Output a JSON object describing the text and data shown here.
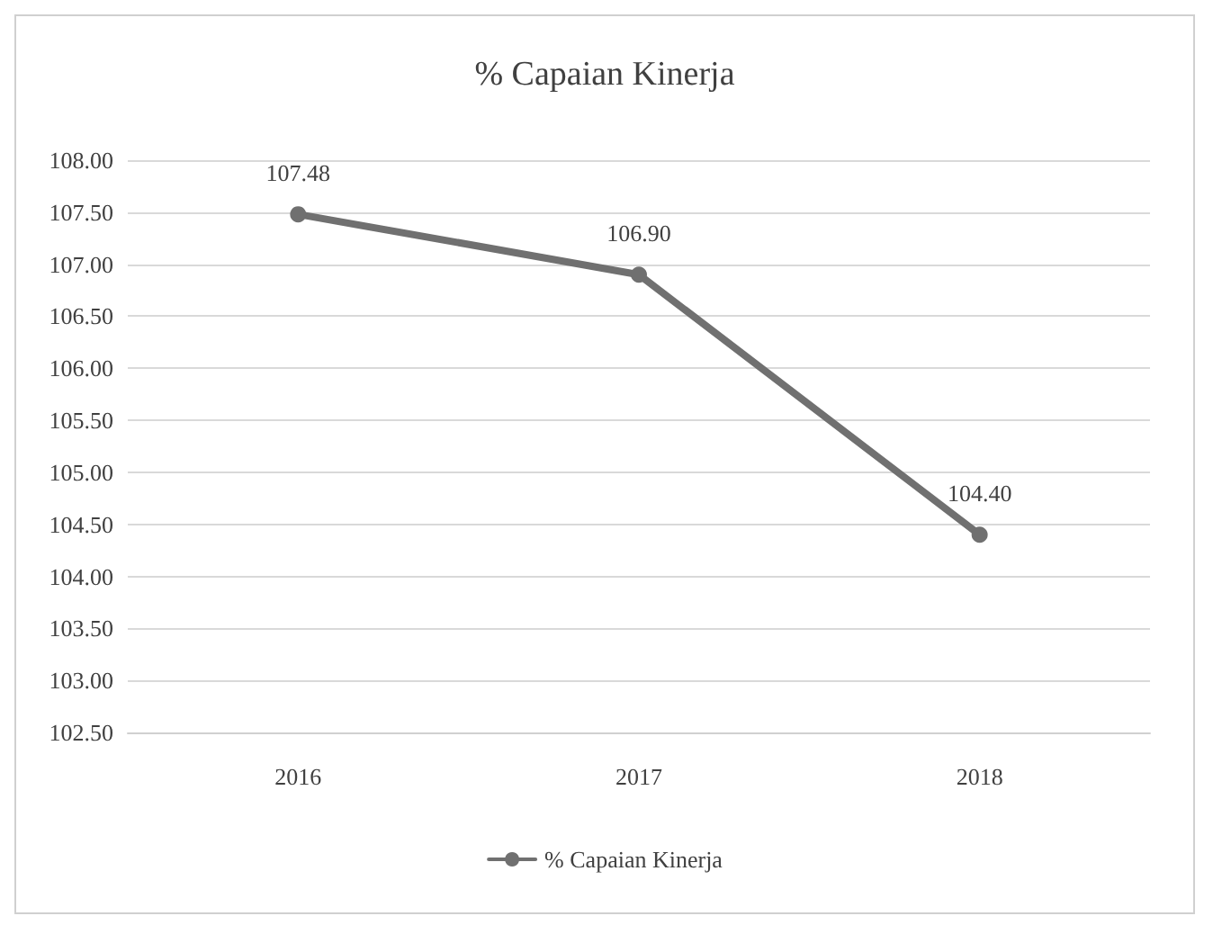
{
  "chart_data": {
    "type": "line",
    "title": "% Capaian Kinerja",
    "categories": [
      "2016",
      "2017",
      "2018"
    ],
    "series": [
      {
        "name": "% Capaian Kinerja",
        "color": "#707070",
        "values": [
          107.48,
          106.9,
          104.4
        ],
        "value_labels": [
          "107.48",
          "106.90",
          "104.40"
        ]
      }
    ],
    "ylim": [
      102.5,
      108
    ],
    "yticks": [
      {
        "value": 102.5,
        "label": "102.50"
      },
      {
        "value": 103,
        "label": "103.00"
      },
      {
        "value": 103.5,
        "label": "103.50"
      },
      {
        "value": 104,
        "label": "104.00"
      },
      {
        "value": 104.5,
        "label": "104.50"
      },
      {
        "value": 105,
        "label": "105.00"
      },
      {
        "value": 105.5,
        "label": "105.50"
      },
      {
        "value": 106,
        "label": "106.00"
      },
      {
        "value": 106.5,
        "label": "106.50"
      },
      {
        "value": 107,
        "label": "107.00"
      },
      {
        "value": 107.5,
        "label": "107.50"
      },
      {
        "value": 108,
        "label": "108.00"
      }
    ],
    "grid": "y",
    "legend": "bottom",
    "marker": "circle",
    "line_style": "solid"
  }
}
